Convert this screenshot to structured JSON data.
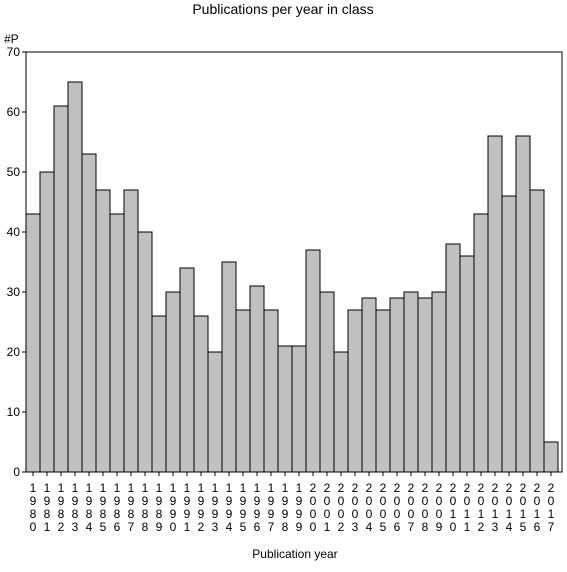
{
  "chart_data": {
    "type": "bar",
    "title": "Publications per year in class",
    "ylabel": "#P",
    "xlabel": "Publication year",
    "ylim": [
      0,
      70
    ],
    "yticks": [
      0,
      10,
      20,
      30,
      40,
      50,
      60,
      70
    ],
    "grid": false,
    "categories": [
      "1980",
      "1981",
      "1982",
      "1983",
      "1984",
      "1985",
      "1986",
      "1987",
      "1988",
      "1989",
      "1990",
      "1991",
      "1992",
      "1993",
      "1994",
      "1995",
      "1996",
      "1997",
      "1998",
      "1999",
      "2000",
      "2001",
      "2002",
      "2003",
      "2004",
      "2005",
      "2006",
      "2007",
      "2008",
      "2009",
      "2010",
      "2011",
      "2012",
      "2013",
      "2014",
      "2015",
      "2016",
      "2017"
    ],
    "values": [
      43,
      50,
      61,
      65,
      53,
      47,
      43,
      47,
      40,
      26,
      30,
      34,
      26,
      20,
      35,
      27,
      31,
      27,
      21,
      21,
      37,
      30,
      20,
      27,
      29,
      27,
      29,
      30,
      29,
      30,
      38,
      36,
      43,
      56,
      46,
      56,
      47,
      5
    ],
    "colors": {
      "bar_fill": "#c0c0c0",
      "bar_stroke": "#000000",
      "axis": "#000000"
    }
  }
}
